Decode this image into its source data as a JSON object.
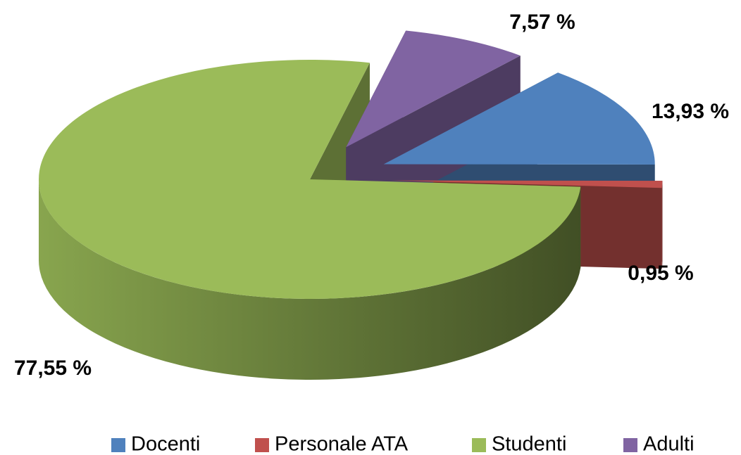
{
  "chart_data": {
    "type": "pie",
    "categories": [
      "Docenti",
      "Personale ATA",
      "Studenti",
      "Adulti"
    ],
    "values": [
      13.93,
      0.95,
      77.55,
      7.57
    ],
    "value_labels": [
      "13,93 %",
      "0,95 %",
      "77,55 %",
      "7,57 %"
    ],
    "colors": [
      "#4f81bd",
      "#c0504d",
      "#9bbb59",
      "#8064a2"
    ],
    "legend": "bottom"
  }
}
